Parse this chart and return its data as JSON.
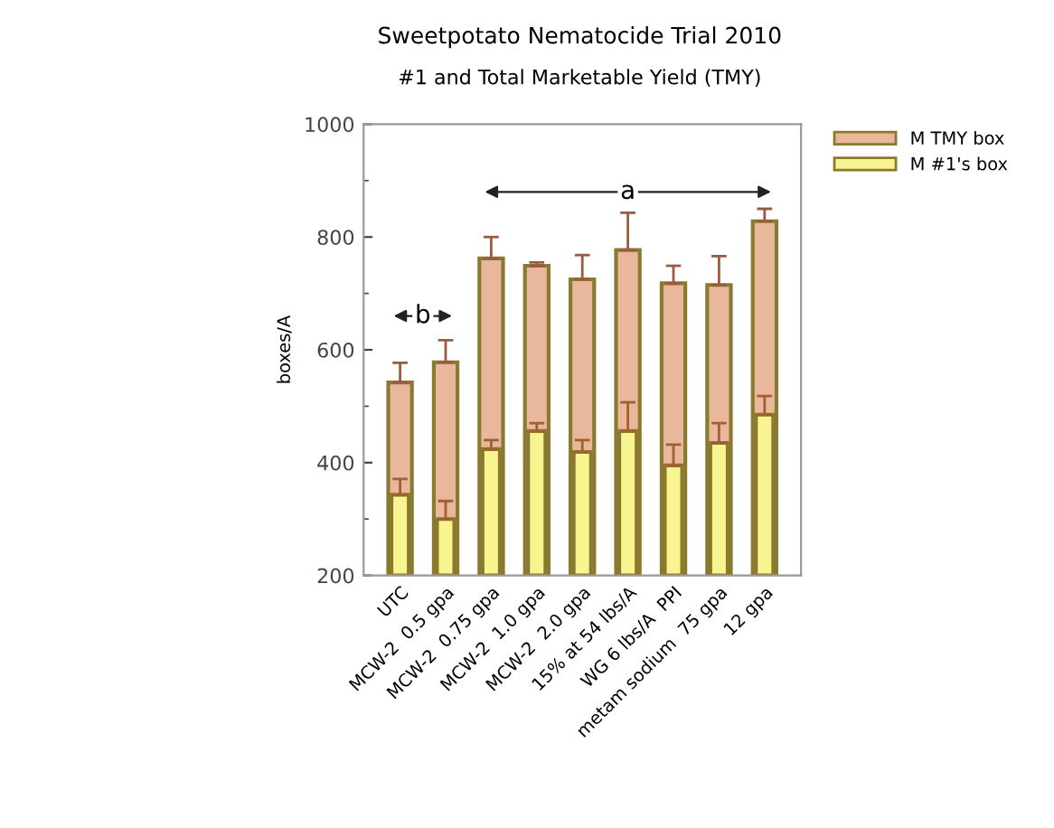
{
  "chart_data": {
    "type": "bar",
    "title": "Sweetpotato Nematocide Trial 2010",
    "subtitle": "#1 and Total Marketable Yield (TMY)",
    "ylabel": "boxes/A",
    "categories": [
      "UTC",
      "MCW-2  0.5 gpa",
      "MCW-2  0.75 gpa",
      "MCW-2  1.0 gpa",
      "MCW-2  2.0 gpa",
      "15% at 54 lbs/A",
      "WG 6 lbs/A  PPI",
      "metam sodium  75 gpa",
      "12 gpa"
    ],
    "series": [
      {
        "name": "M TMY box",
        "color": "#e9b79c",
        "values": [
          542,
          578,
          762,
          749,
          725,
          777,
          718,
          715,
          828
        ],
        "errors": [
          [
            542,
            577
          ],
          [
            578,
            617
          ],
          [
            762,
            800
          ],
          [
            749,
            755
          ],
          [
            725,
            768
          ],
          [
            777,
            843
          ],
          [
            718,
            749
          ],
          [
            715,
            766
          ],
          [
            828,
            850
          ]
        ]
      },
      {
        "name": "M #1's box",
        "color": "#f8f590",
        "values": [
          343,
          300,
          424,
          456,
          419,
          456,
          395,
          435,
          485
        ],
        "errors": [
          [
            343,
            371
          ],
          [
            300,
            332
          ],
          [
            424,
            440
          ],
          [
            456,
            470
          ],
          [
            419,
            440
          ],
          [
            456,
            507
          ],
          [
            395,
            432
          ],
          [
            435,
            470
          ],
          [
            485,
            518
          ]
        ]
      }
    ],
    "annotations": [
      "b",
      "a"
    ],
    "ylim": [
      200,
      1000
    ],
    "yticks": [
      200,
      400,
      600,
      800,
      1000
    ],
    "grid": false,
    "legend": "top right"
  }
}
